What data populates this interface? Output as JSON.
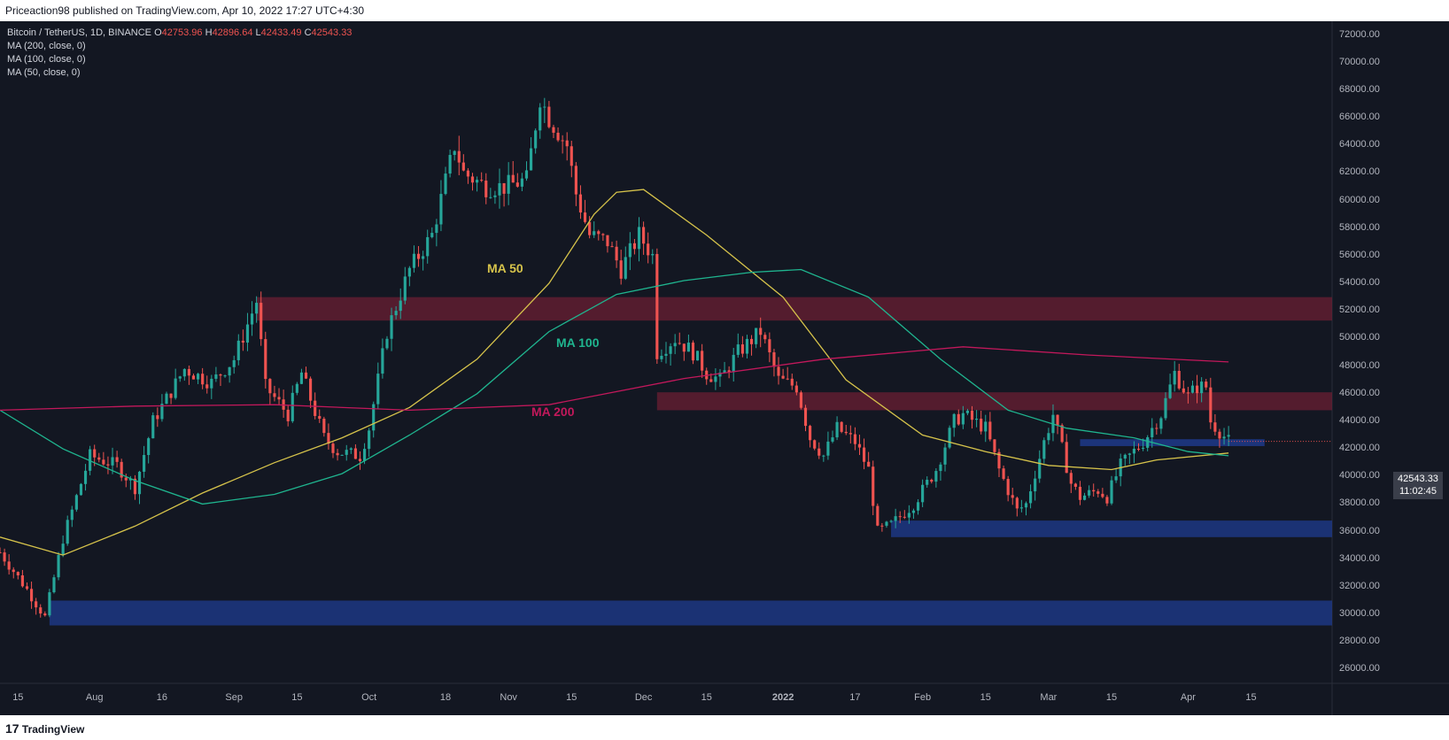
{
  "header": {
    "published_by": "Priceaction98 published on TradingView.com, Apr 10, 2022 17:27 UTC+4:30"
  },
  "legend": {
    "symbol": "Bitcoin / TetherUS, 1D, BINANCE",
    "ohlc": {
      "o_label": "O",
      "o": "42753.96",
      "h_label": "H",
      "h": "42896.64",
      "l_label": "L",
      "l": "42433.49",
      "c_label": "C",
      "c": "42543.33"
    },
    "indicators": [
      "MA (200, close, 0)",
      "MA (100, close, 0)",
      "MA (50, close, 0)"
    ]
  },
  "labels": {
    "ma50": "MA 50",
    "ma100": "MA 100",
    "ma200": "MA 200"
  },
  "price_tag": {
    "price": "42543.33",
    "countdown": "11:02:45"
  },
  "footer": {
    "brand": "TradingView",
    "brand_mark": "17"
  },
  "colors": {
    "background": "#131722",
    "up": "#26a69a",
    "down": "#ef5350",
    "ma50": "#d6c34b",
    "ma100": "#1fb58f",
    "ma200": "#c2185b",
    "resistance_zone": "#6b1f33",
    "support_zone": "#1e3a8a"
  },
  "chart_data": {
    "type": "candlestick",
    "y_axis_ticks": [
      "72000.00",
      "70000.00",
      "68000.00",
      "66000.00",
      "64000.00",
      "62000.00",
      "60000.00",
      "58000.00",
      "56000.00",
      "54000.00",
      "52000.00",
      "50000.00",
      "48000.00",
      "46000.00",
      "44000.00",
      "42000.00",
      "40000.00",
      "38000.00",
      "36000.00",
      "34000.00",
      "32000.00",
      "30000.00",
      "28000.00",
      "26000.00"
    ],
    "ylim": [
      25000,
      73000
    ],
    "x_axis_ticks": [
      {
        "label": "15",
        "date": "2021-07-15"
      },
      {
        "label": "Aug",
        "date": "2021-08-01"
      },
      {
        "label": "16",
        "date": "2021-08-16"
      },
      {
        "label": "Sep",
        "date": "2021-09-01"
      },
      {
        "label": "15",
        "date": "2021-09-15"
      },
      {
        "label": "Oct",
        "date": "2021-10-01"
      },
      {
        "label": "18",
        "date": "2021-10-18"
      },
      {
        "label": "Nov",
        "date": "2021-11-01"
      },
      {
        "label": "15",
        "date": "2021-11-15"
      },
      {
        "label": "Dec",
        "date": "2021-12-01"
      },
      {
        "label": "15",
        "date": "2021-12-15"
      },
      {
        "label": "2022",
        "date": "2022-01-01"
      },
      {
        "label": "17",
        "date": "2022-01-17"
      },
      {
        "label": "Feb",
        "date": "2022-02-01"
      },
      {
        "label": "15",
        "date": "2022-02-15"
      },
      {
        "label": "Mar",
        "date": "2022-03-01"
      },
      {
        "label": "15",
        "date": "2022-03-15"
      },
      {
        "label": "Apr",
        "date": "2022-04-01"
      },
      {
        "label": "15",
        "date": "2022-04-15"
      }
    ],
    "xlim": [
      "2021-07-11",
      "2022-05-03"
    ],
    "price_keypoints": [
      [
        "2021-07-11",
        34500
      ],
      [
        "2021-07-17",
        31800
      ],
      [
        "2021-07-21",
        29800
      ],
      [
        "2021-07-25",
        35500
      ],
      [
        "2021-07-31",
        41500
      ],
      [
        "2021-08-06",
        40800
      ],
      [
        "2021-08-10",
        39200
      ],
      [
        "2021-08-14",
        44000
      ],
      [
        "2021-08-21",
        47800
      ],
      [
        "2021-08-27",
        46800
      ],
      [
        "2021-09-01",
        48500
      ],
      [
        "2021-09-06",
        52700
      ],
      [
        "2021-09-08",
        46500
      ],
      [
        "2021-09-13",
        44500
      ],
      [
        "2021-09-16",
        47500
      ],
      [
        "2021-09-21",
        42800
      ],
      [
        "2021-09-24",
        41800
      ],
      [
        "2021-09-29",
        41500
      ],
      [
        "2021-10-01",
        43500
      ],
      [
        "2021-10-05",
        50500
      ],
      [
        "2021-10-10",
        55000
      ],
      [
        "2021-10-15",
        57500
      ],
      [
        "2021-10-20",
        64000
      ],
      [
        "2021-10-22",
        62000
      ],
      [
        "2021-10-27",
        61000
      ],
      [
        "2021-10-31",
        61000
      ],
      [
        "2021-11-05",
        61500
      ],
      [
        "2021-11-08",
        67500
      ],
      [
        "2021-11-10",
        66000
      ],
      [
        "2021-11-14",
        64000
      ],
      [
        "2021-11-16",
        60500
      ],
      [
        "2021-11-19",
        57500
      ],
      [
        "2021-11-23",
        57000
      ],
      [
        "2021-11-26",
        55000
      ],
      [
        "2021-11-30",
        57500
      ],
      [
        "2021-12-03",
        56000
      ],
      [
        "2021-12-04",
        49000
      ],
      [
        "2021-12-08",
        50000
      ],
      [
        "2021-12-12",
        49000
      ],
      [
        "2021-12-15",
        47500
      ],
      [
        "2021-12-18",
        47000
      ],
      [
        "2021-12-22",
        49000
      ],
      [
        "2021-12-27",
        50500
      ],
      [
        "2021-12-31",
        47000
      ],
      [
        "2022-01-04",
        46500
      ],
      [
        "2022-01-07",
        42800
      ],
      [
        "2022-01-10",
        41500
      ],
      [
        "2022-01-13",
        43500
      ],
      [
        "2022-01-17",
        42500
      ],
      [
        "2022-01-20",
        40500
      ],
      [
        "2022-01-22",
        36000
      ],
      [
        "2022-01-25",
        36500
      ],
      [
        "2022-01-30",
        38000
      ],
      [
        "2022-02-04",
        40500
      ],
      [
        "2022-02-08",
        44000
      ],
      [
        "2022-02-10",
        44500
      ],
      [
        "2022-02-15",
        43500
      ],
      [
        "2022-02-18",
        40500
      ],
      [
        "2022-02-22",
        37500
      ],
      [
        "2022-02-24",
        38000
      ],
      [
        "2022-02-28",
        42500
      ],
      [
        "2022-03-02",
        44500
      ],
      [
        "2022-03-06",
        39500
      ],
      [
        "2022-03-08",
        38500
      ],
      [
        "2022-03-12",
        39000
      ],
      [
        "2022-03-14",
        38500
      ],
      [
        "2022-03-17",
        40800
      ],
      [
        "2022-03-22",
        42500
      ],
      [
        "2022-03-26",
        44500
      ],
      [
        "2022-03-29",
        47500
      ],
      [
        "2022-04-01",
        45800
      ],
      [
        "2022-04-03",
        46500
      ],
      [
        "2022-04-05",
        46500
      ],
      [
        "2022-04-06",
        44000
      ],
      [
        "2022-04-10",
        42543
      ]
    ],
    "ma_series": [
      {
        "name": "MA 50",
        "points": [
          [
            "2021-07-11",
            35600
          ],
          [
            "2021-07-25",
            34300
          ],
          [
            "2021-08-10",
            36400
          ],
          [
            "2021-08-25",
            38800
          ],
          [
            "2021-09-10",
            41000
          ],
          [
            "2021-09-25",
            42800
          ],
          [
            "2021-10-10",
            45000
          ],
          [
            "2021-10-25",
            48500
          ],
          [
            "2021-11-10",
            54000
          ],
          [
            "2021-11-20",
            59000
          ],
          [
            "2021-11-25",
            60600
          ],
          [
            "2021-12-01",
            60800
          ],
          [
            "2021-12-15",
            57500
          ],
          [
            "2022-01-01",
            53000
          ],
          [
            "2022-01-15",
            47000
          ],
          [
            "2022-02-01",
            43000
          ],
          [
            "2022-02-15",
            41800
          ],
          [
            "2022-03-01",
            40800
          ],
          [
            "2022-03-15",
            40500
          ],
          [
            "2022-03-25",
            41200
          ],
          [
            "2022-04-10",
            41700
          ]
        ]
      },
      {
        "name": "MA 100",
        "points": [
          [
            "2021-07-11",
            44800
          ],
          [
            "2021-07-25",
            42000
          ],
          [
            "2021-08-10",
            39700
          ],
          [
            "2021-08-25",
            38000
          ],
          [
            "2021-09-10",
            38700
          ],
          [
            "2021-09-25",
            40200
          ],
          [
            "2021-10-10",
            43000
          ],
          [
            "2021-10-25",
            46000
          ],
          [
            "2021-11-10",
            50500
          ],
          [
            "2021-11-25",
            53200
          ],
          [
            "2021-12-10",
            54200
          ],
          [
            "2021-12-25",
            54800
          ],
          [
            "2022-01-05",
            55000
          ],
          [
            "2022-01-20",
            53000
          ],
          [
            "2022-02-05",
            48500
          ],
          [
            "2022-02-20",
            44800
          ],
          [
            "2022-03-05",
            43500
          ],
          [
            "2022-03-20",
            42800
          ],
          [
            "2022-04-01",
            41800
          ],
          [
            "2022-04-10",
            41500
          ]
        ]
      },
      {
        "name": "MA 200",
        "points": [
          [
            "2021-07-11",
            44800
          ],
          [
            "2021-08-10",
            45100
          ],
          [
            "2021-09-10",
            45200
          ],
          [
            "2021-10-10",
            44800
          ],
          [
            "2021-11-10",
            45200
          ],
          [
            "2021-12-10",
            47100
          ],
          [
            "2022-01-10",
            48500
          ],
          [
            "2022-02-10",
            49400
          ],
          [
            "2022-03-10",
            48800
          ],
          [
            "2022-04-10",
            48300
          ]
        ]
      }
    ],
    "zones": [
      {
        "kind": "resistance",
        "from": "2021-09-06",
        "to": "2022-05-03",
        "low": 51300,
        "high": 53000
      },
      {
        "kind": "resistance",
        "from": "2021-12-04",
        "to": "2022-05-03",
        "low": 44800,
        "high": 46100
      },
      {
        "kind": "support",
        "from": "2022-01-25",
        "to": "2022-05-03",
        "low": 35600,
        "high": 36800
      },
      {
        "kind": "support",
        "from": "2021-07-22",
        "to": "2022-05-03",
        "low": 29200,
        "high": 31000
      },
      {
        "kind": "support_line",
        "from": "2022-03-08",
        "to": "2022-04-18",
        "low": 42200,
        "high": 42700
      }
    ]
  }
}
